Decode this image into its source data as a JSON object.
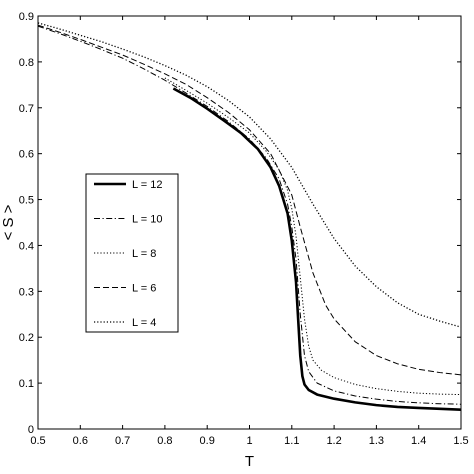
{
  "chart_data": {
    "type": "line",
    "title": "",
    "xlabel": "T",
    "ylabel": "< S >",
    "xlim": [
      0.5,
      1.5
    ],
    "ylim": [
      0,
      0.9
    ],
    "xticks": [
      0.5,
      0.6,
      0.7,
      0.8,
      0.9,
      1,
      1.1,
      1.2,
      1.3,
      1.4,
      1.5
    ],
    "xtick_labels": [
      "0.5",
      "0.6",
      "0.7",
      "0.8",
      "0.9",
      "1",
      "1.1",
      "1.2",
      "1.3",
      "1.4",
      "1.5"
    ],
    "yticks": [
      0,
      0.1,
      0.2,
      0.3,
      0.4,
      0.5,
      0.6,
      0.7,
      0.8,
      0.9
    ],
    "ytick_labels": [
      "0",
      "0.1",
      "0.2",
      "0.3",
      "0.4",
      "0.5",
      "0.6",
      "0.7",
      "0.8",
      "0.9"
    ],
    "grid": false,
    "legend_position": "left",
    "series": [
      {
        "name": "L = 12",
        "style": "solid",
        "width": "thick",
        "x": [
          0.82,
          0.86,
          0.9,
          0.94,
          0.98,
          1.02,
          1.05,
          1.07,
          1.09,
          1.1,
          1.11,
          1.115,
          1.12,
          1.125,
          1.13,
          1.14,
          1.16,
          1.2,
          1.25,
          1.3,
          1.35,
          1.4,
          1.45,
          1.5
        ],
        "y": [
          0.742,
          0.722,
          0.698,
          0.672,
          0.645,
          0.61,
          0.57,
          0.53,
          0.47,
          0.41,
          0.32,
          0.24,
          0.16,
          0.115,
          0.097,
          0.085,
          0.075,
          0.066,
          0.058,
          0.052,
          0.048,
          0.046,
          0.044,
          0.042
        ]
      },
      {
        "name": "L = 10",
        "style": "dashdot",
        "width": "thin",
        "x": [
          0.5,
          0.55,
          0.6,
          0.65,
          0.7,
          0.75,
          0.8,
          0.85,
          0.9,
          0.95,
          1.0,
          1.04,
          1.07,
          1.09,
          1.1,
          1.11,
          1.12,
          1.13,
          1.14,
          1.16,
          1.2,
          1.25,
          1.3,
          1.35,
          1.4,
          1.45,
          1.5
        ],
        "y": [
          0.878,
          0.862,
          0.845,
          0.827,
          0.808,
          0.785,
          0.76,
          0.732,
          0.703,
          0.67,
          0.632,
          0.59,
          0.545,
          0.49,
          0.44,
          0.37,
          0.25,
          0.16,
          0.125,
          0.1,
          0.083,
          0.072,
          0.065,
          0.06,
          0.057,
          0.055,
          0.054
        ]
      },
      {
        "name": "L = 8",
        "style": "dotted",
        "width": "thin",
        "x": [
          0.8,
          0.85,
          0.9,
          0.95,
          1.0,
          1.04,
          1.07,
          1.09,
          1.1,
          1.11,
          1.12,
          1.13,
          1.14,
          1.15,
          1.17,
          1.2,
          1.25,
          1.3,
          1.35,
          1.4,
          1.45,
          1.5
        ],
        "y": [
          0.765,
          0.738,
          0.71,
          0.679,
          0.645,
          0.605,
          0.565,
          0.52,
          0.48,
          0.42,
          0.33,
          0.24,
          0.18,
          0.15,
          0.128,
          0.112,
          0.097,
          0.088,
          0.082,
          0.078,
          0.076,
          0.075
        ]
      },
      {
        "name": "L = 6",
        "style": "dashed",
        "width": "thin",
        "x": [
          0.5,
          0.55,
          0.6,
          0.65,
          0.7,
          0.75,
          0.8,
          0.85,
          0.9,
          0.95,
          1.0,
          1.05,
          1.1,
          1.12,
          1.15,
          1.18,
          1.2,
          1.25,
          1.3,
          1.35,
          1.4,
          1.45,
          1.5
        ],
        "y": [
          0.88,
          0.865,
          0.849,
          0.832,
          0.815,
          0.795,
          0.774,
          0.751,
          0.722,
          0.69,
          0.652,
          0.6,
          0.51,
          0.44,
          0.34,
          0.27,
          0.24,
          0.19,
          0.16,
          0.142,
          0.13,
          0.123,
          0.118
        ]
      },
      {
        "name": "L = 4",
        "style": "dotted",
        "width": "medium",
        "x": [
          0.5,
          0.55,
          0.6,
          0.65,
          0.7,
          0.75,
          0.8,
          0.85,
          0.9,
          0.95,
          1.0,
          1.05,
          1.1,
          1.15,
          1.2,
          1.25,
          1.3,
          1.35,
          1.4,
          1.45,
          1.5
        ],
        "y": [
          0.885,
          0.872,
          0.858,
          0.844,
          0.828,
          0.811,
          0.792,
          0.771,
          0.746,
          0.716,
          0.68,
          0.632,
          0.57,
          0.49,
          0.415,
          0.355,
          0.31,
          0.275,
          0.25,
          0.235,
          0.222
        ]
      }
    ]
  }
}
